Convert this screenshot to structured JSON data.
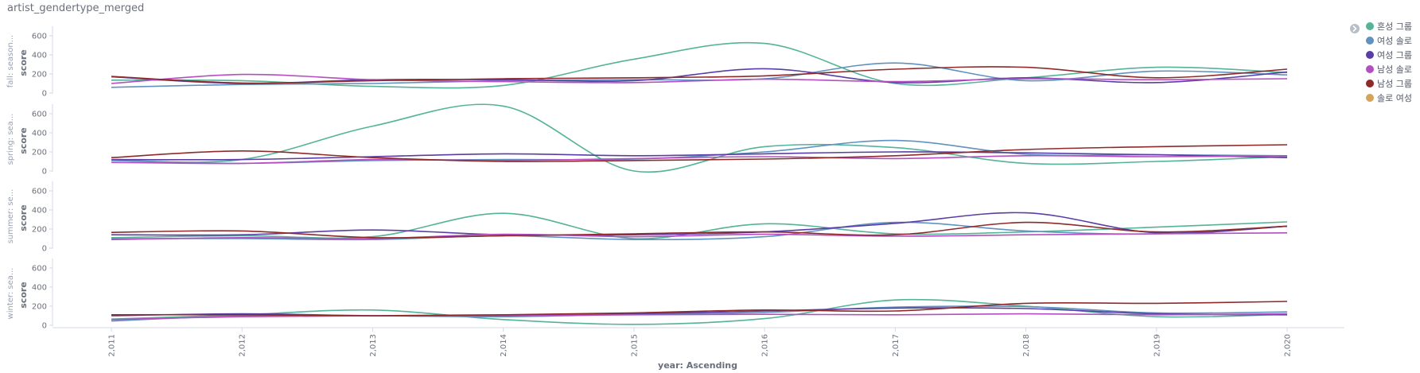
{
  "title": "artist_gendertype_merged",
  "chart_data": {
    "type": "line",
    "x": [
      "2,011",
      "2,012",
      "2,013",
      "2,014",
      "2,015",
      "2,016",
      "2,017",
      "2,018",
      "2,019",
      "2,020"
    ],
    "xlabel": "year: Ascending",
    "ylabel": "score",
    "ylim": [
      0,
      700
    ],
    "yticks": [
      "0",
      "200",
      "400",
      "600"
    ],
    "legend": {
      "position": "top-right"
    },
    "series_meta": [
      {
        "name": "혼성 그룹",
        "color": "#54b399"
      },
      {
        "name": "여성 솔로",
        "color": "#6092c0"
      },
      {
        "name": "여성 그룹",
        "color": "#5a3ea6"
      },
      {
        "name": "남성 솔로",
        "color": "#b44fc1"
      },
      {
        "name": "남성 그룹",
        "color": "#8f2a2a"
      },
      {
        "name": "솔로 여성",
        "color": "#d6a35c"
      }
    ],
    "panels": [
      {
        "label": "fall: season...",
        "series": [
          {
            "name": "혼성 그룹",
            "values": [
              135,
              130,
              70,
              80,
              355,
              520,
              100,
              160,
              270,
              215
            ]
          },
          {
            "name": "여성 솔로",
            "values": [
              60,
              90,
              100,
              130,
              140,
              150,
              315,
              130,
              230,
              190
            ]
          },
          {
            "name": "여성 그룹",
            "values": [
              170,
              100,
              140,
              140,
              130,
              255,
              110,
              160,
              110,
              220
            ]
          },
          {
            "name": "남성 솔로",
            "values": [
              100,
              195,
              140,
              120,
              110,
              145,
              120,
              150,
              140,
              150
            ]
          },
          {
            "name": "남성 그룹",
            "values": [
              175,
              105,
              130,
              150,
              160,
              180,
              250,
              270,
              160,
              250
            ]
          }
        ]
      },
      {
        "label": "spring: sea...",
        "series": [
          {
            "name": "혼성 그룹",
            "values": [
              115,
              120,
              470,
              680,
              0,
              255,
              245,
              80,
              100,
              150
            ]
          },
          {
            "name": "여성 솔로",
            "values": [
              110,
              80,
              110,
              120,
              125,
              200,
              320,
              175,
              170,
              160
            ]
          },
          {
            "name": "여성 그룹",
            "values": [
              120,
              120,
              150,
              180,
              160,
              180,
              200,
              190,
              170,
              140
            ]
          },
          {
            "name": "남성 솔로",
            "values": [
              90,
              80,
              120,
              110,
              130,
              150,
              130,
              160,
              150,
              160
            ]
          },
          {
            "name": "남성 그룹",
            "values": [
              140,
              210,
              140,
              100,
              110,
              125,
              160,
              225,
              255,
              275
            ]
          }
        ]
      },
      {
        "label": "summer: se...",
        "series": [
          {
            "name": "혼성 그룹",
            "values": [
              110,
              130,
              120,
              365,
              100,
              255,
              150,
              170,
              220,
              275
            ]
          },
          {
            "name": "여성 솔로",
            "values": [
              100,
              100,
              90,
              130,
              90,
              120,
              270,
              180,
              150,
              230
            ]
          },
          {
            "name": "여성 그룹",
            "values": [
              140,
              140,
              190,
              140,
              140,
              170,
              260,
              370,
              160,
              230
            ]
          },
          {
            "name": "남성 솔로",
            "values": [
              90,
              110,
              100,
              145,
              120,
              145,
              125,
              140,
              150,
              160
            ]
          },
          {
            "name": "남성 그룹",
            "values": [
              165,
              180,
              110,
              130,
              150,
              170,
              140,
              270,
              170,
              230
            ]
          }
        ]
      },
      {
        "label": "winter: sea...",
        "series": [
          {
            "name": "혼성 그룹",
            "values": [
              65,
              110,
              160,
              60,
              10,
              70,
              265,
              200,
              90,
              115
            ]
          },
          {
            "name": "여성 솔로",
            "values": [
              45,
              100,
              100,
              90,
              115,
              135,
              190,
              195,
              130,
              140
            ]
          },
          {
            "name": "여성 그룹",
            "values": [
              100,
              120,
              100,
              100,
              120,
              150,
              180,
              175,
              120,
              110
            ]
          },
          {
            "name": "남성 솔로",
            "values": [
              60,
              90,
              100,
              100,
              110,
              115,
              110,
              120,
              110,
              120
            ]
          },
          {
            "name": "남성 그룹",
            "values": [
              110,
              110,
              100,
              110,
              130,
              160,
              150,
              230,
              230,
              250
            ]
          }
        ]
      }
    ]
  }
}
